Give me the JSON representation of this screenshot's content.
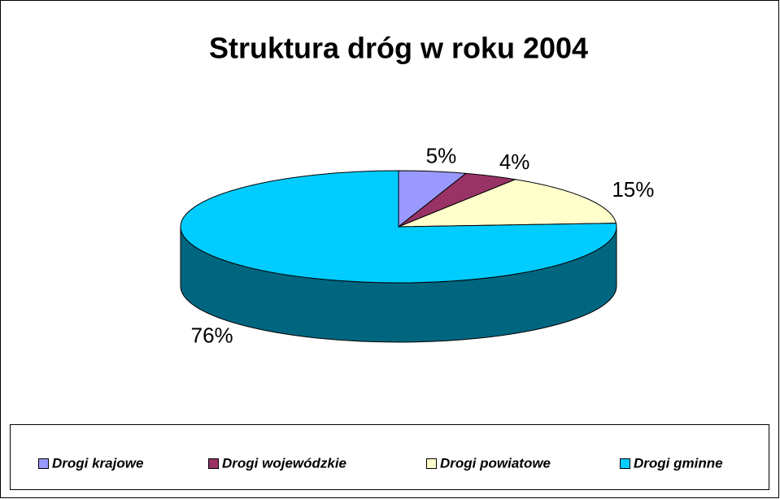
{
  "chart_data": {
    "type": "pie3d",
    "title": "Struktura dróg w roku 2004",
    "categories": [
      "Drogi krajowe",
      "Drogi wojewódzkie",
      "Drogi powiatowe",
      "Drogi gminne"
    ],
    "values": [
      5,
      4,
      15,
      76
    ],
    "value_labels": [
      "5%",
      "4%",
      "15%",
      "76%"
    ],
    "colors": [
      "#9999ff",
      "#993366",
      "#ffffcc",
      "#00ccff"
    ],
    "legend": "bottom"
  }
}
